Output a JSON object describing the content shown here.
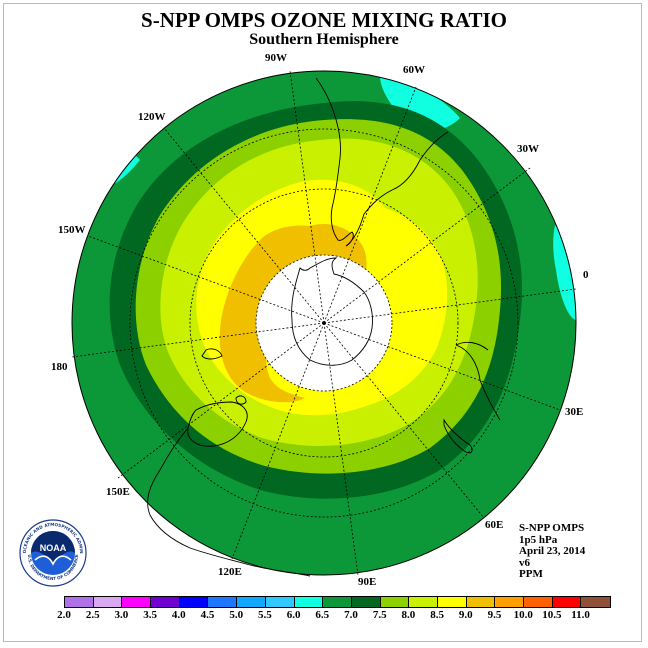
{
  "title": "S-NPP OMPS OZONE MIXING RATIO",
  "subtitle": "Southern Hemisphere",
  "longitude_labels": [
    "0",
    "30E",
    "60E",
    "90E",
    "120E",
    "150E",
    "180",
    "150W",
    "120W",
    "90W",
    "60W",
    "30W"
  ],
  "info": {
    "instrument": "S-NPP OMPS",
    "level": "1p5 hPa",
    "date": "April 23, 2014",
    "version": "v6",
    "units": "PPM"
  },
  "logo": {
    "text": "NOAA",
    "ring_text": "NATIONAL OCEANIC AND ATMOSPHERIC ADMINISTRATION",
    "ring_text_bottom": "U.S. DEPARTMENT OF COMMERCE"
  },
  "colorbar": {
    "ticks": [
      "2.0",
      "2.5",
      "3.0",
      "3.5",
      "4.0",
      "4.5",
      "5.0",
      "5.5",
      "6.0",
      "6.5",
      "7.0",
      "7.5",
      "8.0",
      "8.5",
      "9.0",
      "9.5",
      "10.0",
      "10.5",
      "11.0"
    ],
    "colors": [
      "#b070e8",
      "#d8a8f0",
      "#ff00ff",
      "#7000d0",
      "#0000ff",
      "#1e78ff",
      "#10a8ff",
      "#30c8ff",
      "#10ffe0",
      "#0c9838",
      "#006820",
      "#8cd000",
      "#c8f000",
      "#ffff00",
      "#f0c000",
      "#ffa000",
      "#ff6000",
      "#ff0000",
      "#905038"
    ]
  },
  "field_colors": {
    "band_5_5_6_0": "#10ffe0",
    "band_6_0_6_5": "#0c9838",
    "band_6_5_7_0": "#006820",
    "band_7_0_7_5": "#8cd000",
    "band_7_5_8_0": "#c8f000",
    "band_8_0_8_5": "#ffff00",
    "band_8_5_9_0": "#f0c000",
    "polar_no_data": "#ffffff"
  }
}
